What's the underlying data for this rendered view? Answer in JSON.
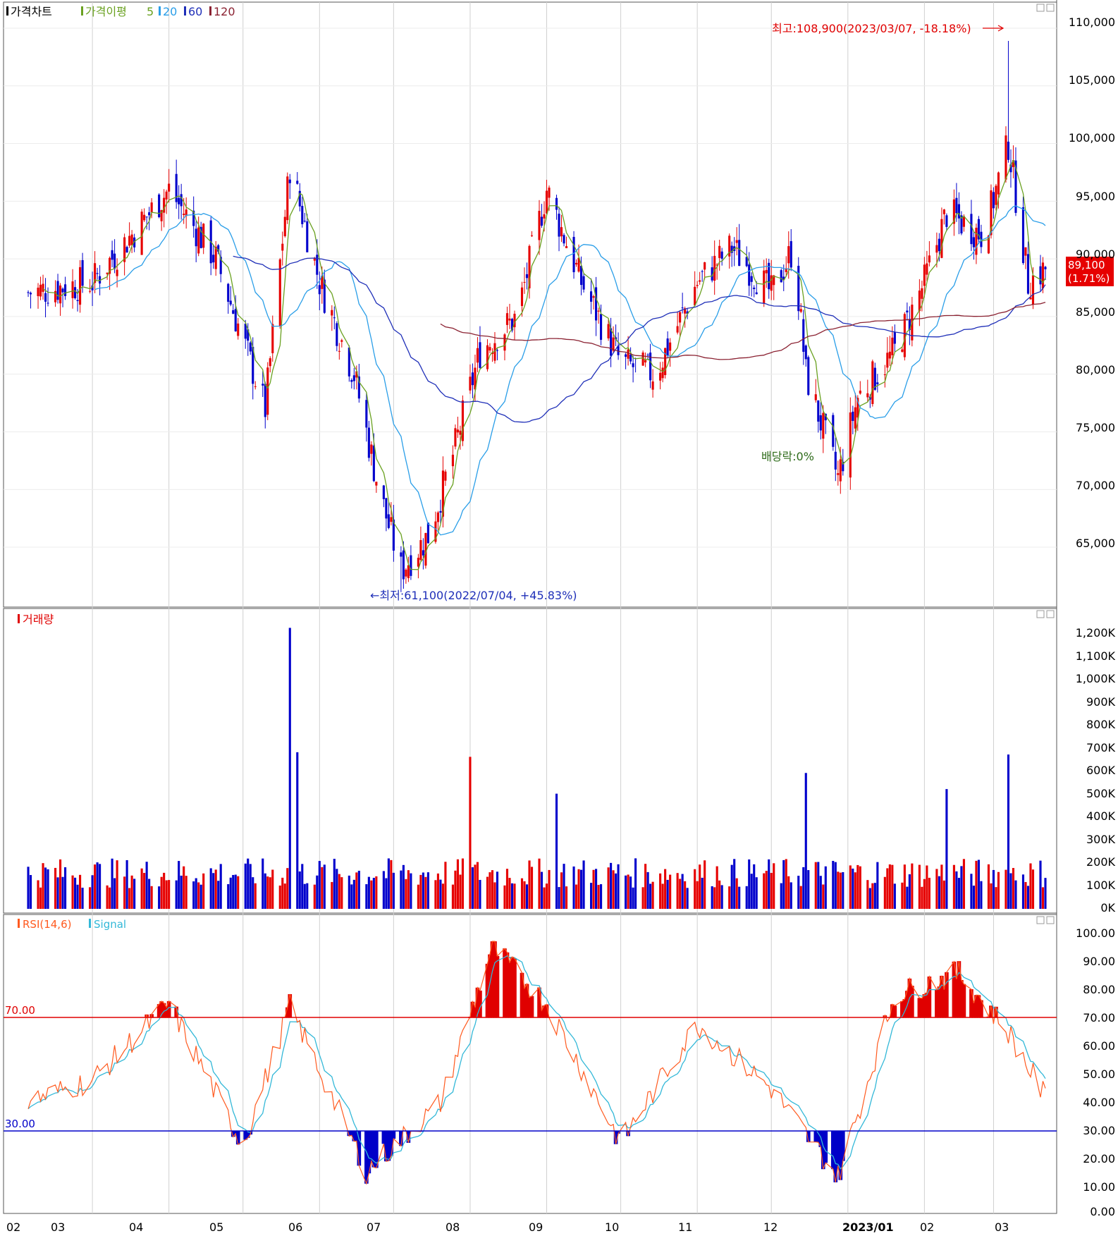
{
  "colors": {
    "up": "#e60000",
    "down": "#0000cc",
    "ma5": "#6aa121",
    "ma20": "#2a9ee8",
    "ma60": "#1f2fb8",
    "ma120": "#8b2232",
    "rsi": "#ff5a1f",
    "signal": "#33b8d8",
    "overbought": "#e00000",
    "oversold": "#0000c8",
    "grid": "#d0d0d0",
    "frame": "#555555"
  },
  "price_panel": {
    "legend": {
      "title": "가격차트",
      "ma_title": "가격이평",
      "ma_periods": [
        "5",
        "20",
        "60",
        "120"
      ]
    },
    "high_annotation": "최고:108,900(2023/03/07, -18.18%)",
    "low_annotation": "←최저:61,100(2022/07/04, +45.83%)",
    "dividend_annotation": "배당락:0%",
    "current_price": "89,100",
    "current_change": "(1.71%)",
    "y_ticks": [
      "110,000",
      "105,000",
      "100,000",
      "95,000",
      "90,000",
      "85,000",
      "80,000",
      "75,000",
      "70,000",
      "65,000"
    ]
  },
  "volume_panel": {
    "legend": "거래량",
    "y_ticks": [
      "1,200K",
      "1,100K",
      "1,000K",
      "900K",
      "800K",
      "700K",
      "600K",
      "500K",
      "400K",
      "300K",
      "200K",
      "100K",
      "0K"
    ]
  },
  "rsi_panel": {
    "legend_rsi": "RSI(14,6)",
    "legend_signal": "Signal",
    "upper_label": "70.00",
    "lower_label": "30.00",
    "y_ticks": [
      "100.00",
      "90.00",
      "80.00",
      "70.00",
      "60.00",
      "50.00",
      "40.00",
      "30.00",
      "20.00",
      "10.00",
      "0.00"
    ]
  },
  "x_axis": {
    "labels": [
      "02",
      "03",
      "04",
      "05",
      "06",
      "07",
      "08",
      "09",
      "10",
      "11",
      "12",
      "2023/01",
      "02",
      "03"
    ]
  },
  "chart_data": [
    {
      "type": "candlestick",
      "title": "가격차트",
      "ylim": [
        60000,
        111000
      ],
      "grid": true,
      "x_range": [
        "2022-02",
        "2023-03"
      ],
      "extremes": {
        "high": 108900,
        "high_date": "2023/03/07",
        "low": 61100,
        "low_date": "2022/07/04"
      },
      "last_close": 89100,
      "last_change_pct": 1.71,
      "anchors": [
        {
          "x": "2022-02",
          "close": 87000
        },
        {
          "x": "2022-03",
          "close": 88000
        },
        {
          "x": "2022-04",
          "close": 96000
        },
        {
          "x": "2022-04-20",
          "close": 90000
        },
        {
          "x": "2022-05-01",
          "close": 83000
        },
        {
          "x": "2022-05-10",
          "close": 77000
        },
        {
          "x": "2022-05-20",
          "close": 98000
        },
        {
          "x": "2022-06-01",
          "close": 88000
        },
        {
          "x": "2022-06-15",
          "close": 80000
        },
        {
          "x": "2022-06-25",
          "close": 70000
        },
        {
          "x": "2022-07-04",
          "close": 63000
        },
        {
          "x": "2022-07-15",
          "close": 66000
        },
        {
          "x": "2022-07-25",
          "close": 73000
        },
        {
          "x": "2022-08-05",
          "close": 82000
        },
        {
          "x": "2022-08-20",
          "close": 85000
        },
        {
          "x": "2022-09-01",
          "close": 96000
        },
        {
          "x": "2022-09-15",
          "close": 88000
        },
        {
          "x": "2022-10-01",
          "close": 81000
        },
        {
          "x": "2022-10-15",
          "close": 80000
        },
        {
          "x": "2022-11-01",
          "close": 88000
        },
        {
          "x": "2022-11-15",
          "close": 91000
        },
        {
          "x": "2022-12-01",
          "close": 87000
        },
        {
          "x": "2022-12-10",
          "close": 91000
        },
        {
          "x": "2022-12-15",
          "close": 80000
        },
        {
          "x": "2022-12-28",
          "close": 71000
        },
        {
          "x": "2023-01-05",
          "close": 78000
        },
        {
          "x": "2023-01-20",
          "close": 82000
        },
        {
          "x": "2023-02-01",
          "close": 88000
        },
        {
          "x": "2023-02-10",
          "close": 94000
        },
        {
          "x": "2023-02-25",
          "close": 92000
        },
        {
          "x": "2023-03-07",
          "close": 100000
        },
        {
          "x": "2023-03-15",
          "close": 88000
        },
        {
          "x": "2023-03-22",
          "close": 89100
        }
      ],
      "series": [
        {
          "name": "5"
        },
        {
          "name": "20"
        },
        {
          "name": "60"
        },
        {
          "name": "120"
        }
      ]
    },
    {
      "type": "bar",
      "title": "거래량",
      "ylim": [
        0,
        1250
      ],
      "unit": "K",
      "spikes": [
        {
          "x": "2022-05-20",
          "value": 1220
        },
        {
          "x": "2022-05-21",
          "value": 720
        },
        {
          "x": "2022-05-23",
          "value": 680
        },
        {
          "x": "2022-08-01",
          "value": 660
        },
        {
          "x": "2022-09-05",
          "value": 500
        },
        {
          "x": "2022-12-15",
          "value": 590
        },
        {
          "x": "2023-02-10",
          "value": 520
        },
        {
          "x": "2023-03-07",
          "value": 670
        }
      ]
    },
    {
      "type": "line",
      "title": "RSI(14,6)",
      "ylim": [
        0,
        100
      ],
      "levels": [
        70,
        30
      ],
      "anchors": [
        {
          "x": "2022-02",
          "rsi": 40
        },
        {
          "x": "2022-03",
          "rsi": 48
        },
        {
          "x": "2022-04",
          "rsi": 75
        },
        {
          "x": "2022-05-01",
          "rsi": 25
        },
        {
          "x": "2022-05-20",
          "rsi": 74
        },
        {
          "x": "2022-06-20",
          "rsi": 16
        },
        {
          "x": "2022-07-20",
          "rsi": 40
        },
        {
          "x": "2022-08-10",
          "rsi": 95
        },
        {
          "x": "2022-09-01",
          "rsi": 75
        },
        {
          "x": "2022-10-01",
          "rsi": 26
        },
        {
          "x": "2022-11-01",
          "rsi": 68
        },
        {
          "x": "2022-12-01",
          "rsi": 45
        },
        {
          "x": "2022-12-28",
          "rsi": 14
        },
        {
          "x": "2023-01-20",
          "rsi": 78
        },
        {
          "x": "2023-02-15",
          "rsi": 86
        },
        {
          "x": "2023-03-07",
          "rsi": 65
        },
        {
          "x": "2023-03-22",
          "rsi": 42
        }
      ]
    }
  ]
}
